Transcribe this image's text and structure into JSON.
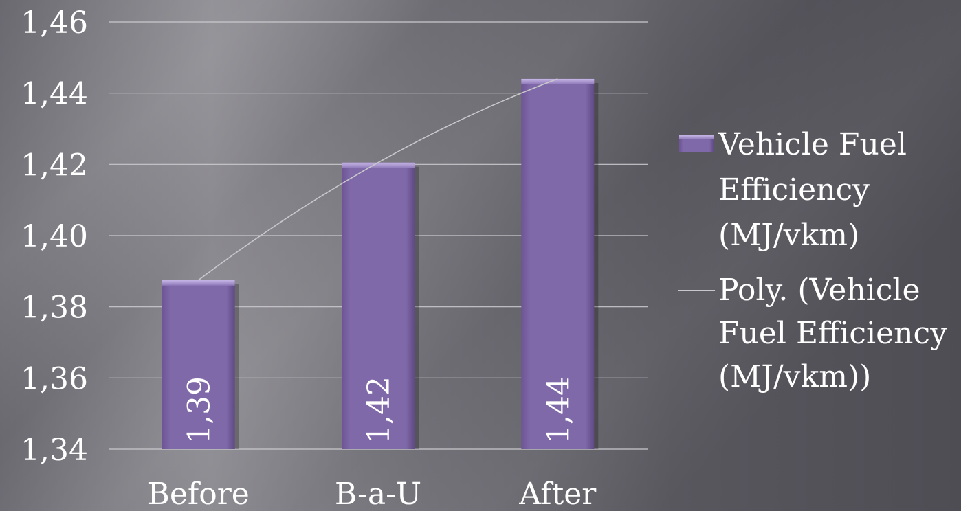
{
  "chart_data": {
    "type": "bar",
    "categories": [
      "Before",
      "B-a-U",
      "After"
    ],
    "series": [
      {
        "name": "Vehicle Fuel Efficiency (MJ/vkm)",
        "values": [
          1.3875,
          1.4205,
          1.444
        ],
        "data_labels": [
          "1,39",
          "1,42",
          "1,44"
        ],
        "color": "#7f67a6"
      }
    ],
    "trendline": {
      "name": "Poly. (Vehicle Fuel Efficiency (MJ/vkm))",
      "type": "polynomial",
      "color": "#c8c8cc"
    },
    "ylim": [
      1.34,
      1.46
    ],
    "yticks": [
      "1,34",
      "1,36",
      "1,38",
      "1,40",
      "1,42",
      "1,44",
      "1,46"
    ],
    "ytick_values": [
      1.34,
      1.36,
      1.38,
      1.4,
      1.42,
      1.44,
      1.46
    ],
    "grid": true,
    "legend": {
      "placement": "right",
      "bar_entry_lines": [
        "Vehicle Fuel",
        "Efficiency",
        "(MJ/vkm)"
      ],
      "line_entry_lines": [
        "Poly. (Vehicle",
        "Fuel Efficiency",
        "(MJ/vkm))"
      ]
    }
  }
}
